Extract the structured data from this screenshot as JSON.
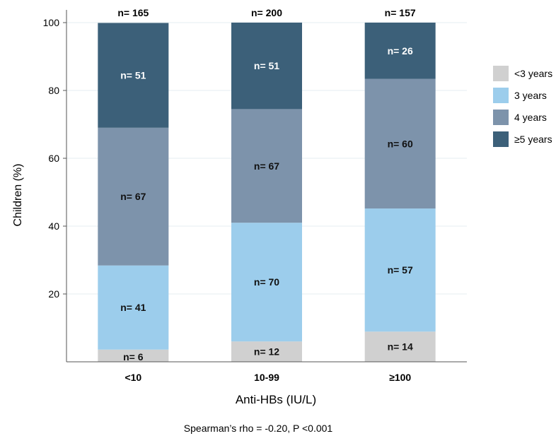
{
  "chart_data": {
    "type": "bar",
    "stacked": true,
    "categories": [
      "<10",
      "10-99",
      "≥100"
    ],
    "totals": [
      "n= 165",
      "n= 200",
      "n= 157"
    ],
    "series": [
      {
        "name": "<3 years",
        "color": "#d0d0d0",
        "values": [
          3.6,
          6.0,
          8.9
        ],
        "labels": [
          "n= 6",
          "n= 12",
          "n= 14"
        ]
      },
      {
        "name": "3 years",
        "color": "#9ccdec",
        "values": [
          24.8,
          35.0,
          36.3
        ],
        "labels": [
          "n= 41",
          "n= 70",
          "n= 57"
        ]
      },
      {
        "name": "4 years",
        "color": "#7d93ab",
        "values": [
          40.6,
          33.5,
          38.2
        ],
        "labels": [
          "n= 67",
          "n= 67",
          "n= 60"
        ]
      },
      {
        "name": "≥5 years",
        "color": "#3c6079",
        "values": [
          30.9,
          25.5,
          16.6
        ],
        "labels": [
          "n= 51",
          "n= 51",
          "n= 26"
        ]
      }
    ],
    "xlabel": "Anti-HBs (IU/L)",
    "ylabel": "Children (%)",
    "ylim": [
      0,
      100
    ],
    "yticks": [
      20,
      40,
      60,
      80,
      100
    ],
    "grid": true,
    "legend": "right",
    "annotation": "Spearman’s rho = -0.20, P <0.001"
  }
}
